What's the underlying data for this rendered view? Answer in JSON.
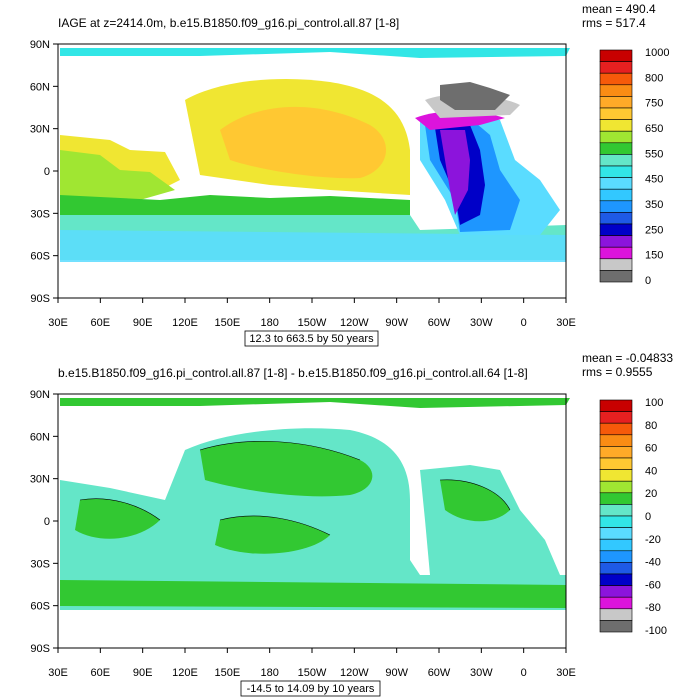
{
  "panels": [
    {
      "title": "IAGE at z=2414.0m, b.e15.B1850.f09_g16.pi_control.all.87 [1-8]",
      "stats": {
        "mean": "mean = 490.4",
        "rms": "rms = 517.4"
      },
      "range_note": "12.3 to 663.5 by 50 years",
      "lat_labels": [
        "90N",
        "60N",
        "30N",
        "0",
        "30S",
        "60S",
        "90S"
      ],
      "lon_labels": [
        "30E",
        "60E",
        "90E",
        "120E",
        "150E",
        "180",
        "150W",
        "120W",
        "90W",
        "60W",
        "30W",
        "0",
        "30E"
      ],
      "colorbar": {
        "labels": [
          "1000",
          "800",
          "750",
          "650",
          "550",
          "450",
          "350",
          "250",
          "150",
          "0"
        ],
        "colors": [
          "#c80000",
          "#e62020",
          "#f65a0a",
          "#fa8c14",
          "#ffaa28",
          "#ffc832",
          "#f0e632",
          "#a0e632",
          "#32c832",
          "#64e6c8",
          "#32e6e6",
          "#5adcff",
          "#32c8ff",
          "#1e96ff",
          "#1e5ae6",
          "#0000c8",
          "#8c14dc",
          "#dc14dc",
          "#c8c8c8",
          "#6e6e6e"
        ]
      }
    },
    {
      "title": "b.e15.B1850.f09_g16.pi_control.all.87 [1-8] - b.e15.B1850.f09_g16.pi_control.all.64 [1-8]",
      "stats": {
        "mean": "mean = -0.04833",
        "rms": "rms = 0.9555"
      },
      "range_note": "-14.5 to 14.09 by 10 years",
      "lat_labels": [
        "90N",
        "60N",
        "30N",
        "0",
        "30S",
        "60S",
        "90S"
      ],
      "lon_labels": [
        "30E",
        "60E",
        "90E",
        "120E",
        "150E",
        "180",
        "150W",
        "120W",
        "90W",
        "60W",
        "30W",
        "0",
        "30E"
      ],
      "colorbar": {
        "labels": [
          "100",
          "80",
          "60",
          "40",
          "20",
          "0",
          "-20",
          "-40",
          "-60",
          "-80",
          "-100"
        ],
        "colors": [
          "#c80000",
          "#e62020",
          "#f65a0a",
          "#fa8c14",
          "#ffaa28",
          "#ffc832",
          "#f0e632",
          "#a0e632",
          "#32c832",
          "#64e6c8",
          "#32e6e6",
          "#5adcff",
          "#32c8ff",
          "#1e96ff",
          "#1e5ae6",
          "#0000c8",
          "#8c14dc",
          "#dc14dc",
          "#c8c8c8",
          "#6e6e6e"
        ]
      }
    }
  ],
  "map_colors": {
    "ocean_green": "#32c832",
    "ocean_teal": "#64e6c8",
    "yellow": "#f0e632",
    "gold": "#ffc832",
    "cyan": "#32e6e6",
    "lightblue": "#5adcff",
    "blue": "#1e96ff",
    "darkblue": "#1e5ae6",
    "navy": "#0000c8",
    "purple": "#8c14dc",
    "magenta": "#dc14dc",
    "gray": "#6e6e6e",
    "lightgray": "#c8c8c8"
  }
}
